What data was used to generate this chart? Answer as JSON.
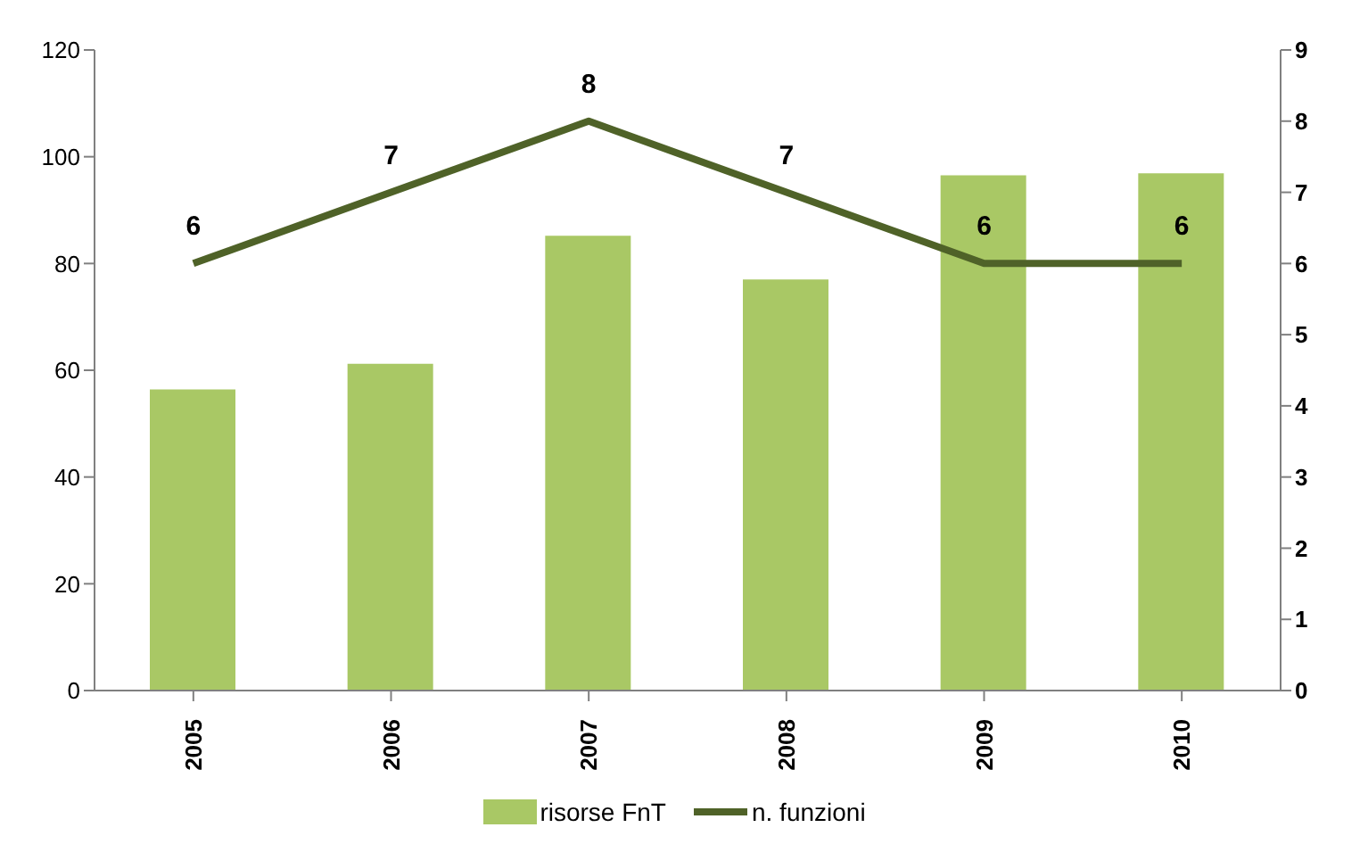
{
  "chart_data": {
    "type": "bar",
    "categories": [
      "2005",
      "2006",
      "2007",
      "2008",
      "2009",
      "2010"
    ],
    "series": [
      {
        "name": "risorse FnT",
        "color": "#a9c865",
        "values": [
          56.4,
          61.2,
          85.2,
          77,
          96.5,
          96.9
        ]
      },
      {
        "name": "n. funzioni",
        "type": "line",
        "axis": "y2",
        "color": "#4f6228",
        "values": [
          6,
          7,
          8,
          7,
          6,
          6
        ],
        "value_labels": [
          "6",
          "7",
          "8",
          "7",
          "6",
          "6"
        ]
      }
    ],
    "ylim": [
      0,
      120
    ],
    "yticks": [
      0,
      20,
      40,
      60,
      80,
      100,
      120
    ],
    "y2lim": [
      0,
      9
    ],
    "y2ticks": [
      0,
      1,
      2,
      3,
      4,
      5,
      6,
      7,
      8,
      9
    ],
    "legend": "bottom",
    "marker": "none"
  }
}
